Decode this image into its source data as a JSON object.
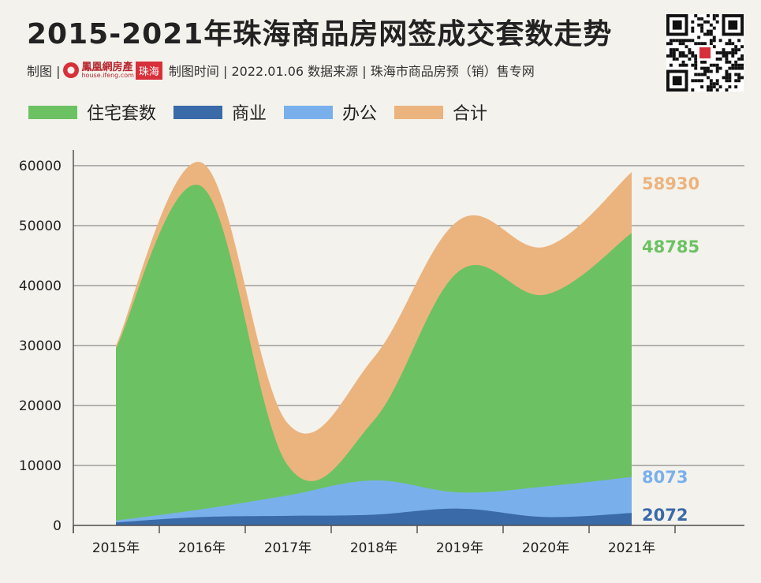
{
  "header": {
    "title": "2015-2021年珠海商品房网签成交套数走势",
    "meta_prefix": "制图 |",
    "logo_name": "鳳凰網房產",
    "logo_url": "house.ifeng.com",
    "logo_city": "珠海",
    "meta_suffix": "制图时间 | 2022.01.06   数据来源 | 珠海市商品房预（销）售专网"
  },
  "colors": {
    "residential": "#6cc263",
    "commercial": "#3a6aa8",
    "office": "#79b0ec",
    "total": "#ebb47e",
    "background": "#f4f2ec"
  },
  "chart_data": {
    "type": "area",
    "categories": [
      "2015年",
      "2016年",
      "2017年",
      "2018年",
      "2019年",
      "2020年",
      "2021年"
    ],
    "series": [
      {
        "name": "住宅套数",
        "key": "residential",
        "values": [
          29500,
          56500,
          10000,
          17500,
          42500,
          38500,
          48785
        ]
      },
      {
        "name": "商业",
        "key": "commercial",
        "values": [
          500,
          1400,
          1600,
          1800,
          2800,
          1400,
          2072
        ]
      },
      {
        "name": "办公",
        "key": "office",
        "values": [
          800,
          2700,
          5000,
          7500,
          5500,
          6500,
          8073
        ]
      },
      {
        "name": "合计",
        "key": "total",
        "values": [
          30000,
          60500,
          17000,
          28000,
          51000,
          46500,
          58930
        ]
      }
    ],
    "end_labels": [
      "58930",
      "48785",
      "8073",
      "2072"
    ],
    "y_ticks": [
      "0",
      "10000",
      "20000",
      "30000",
      "40000",
      "50000",
      "60000"
    ],
    "ylim": [
      0,
      63000
    ],
    "grid": true,
    "legend_position": "top-left"
  }
}
